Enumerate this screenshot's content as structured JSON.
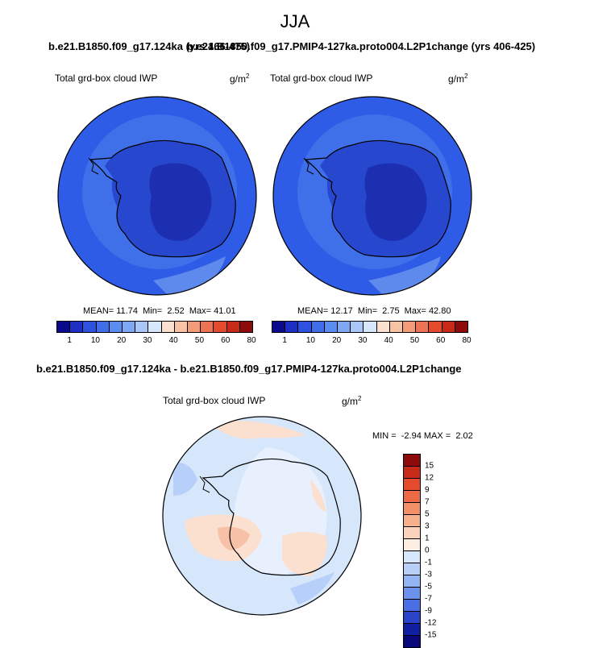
{
  "title": "JJA",
  "top_title_left": "b.e21.B1850.f09_g17.124ka (yrs 466-475)",
  "top_title_right": "b.e21.B1850.f09_g17.PMIP4-127ka.proto004.L2P1change (yrs 406-425)",
  "panel1": {
    "label": "Total grd-box cloud IWP",
    "units": "g/m",
    "units_exp": "2",
    "stats": "MEAN= 11.74  Min=  2.52  Max= 41.01"
  },
  "panel2": {
    "label": "Total grd-box cloud IWP",
    "units": "g/m",
    "units_exp": "2",
    "stats": "MEAN= 12.17  Min=  2.75  Max= 42.80"
  },
  "diff_title": "b.e21.B1850.f09_g17.124ka - b.e21.B1850.f09_g17.PMIP4-127ka.proto004.L2P1change",
  "diff_panel": {
    "label": "Total grd-box cloud IWP",
    "units": "g/m",
    "units_exp": "2",
    "stats": "MIN =  -2.94 MAX =  2.02"
  },
  "colorbar_labels": [
    "1",
    "10",
    "20",
    "30",
    "40",
    "50",
    "60",
    "80"
  ],
  "colorbar_colors": [
    "#0a0a8c",
    "#1d2fc4",
    "#2e52e0",
    "#3f6ee8",
    "#5b8cf0",
    "#7fa8f4",
    "#a9c6f8",
    "#d6e6fb",
    "#fbe0cf",
    "#f8c2a4",
    "#f29c7a",
    "#ec7454",
    "#e44a2c",
    "#c72a16",
    "#8e0b0b"
  ],
  "diff_colorbar_labels": [
    "15",
    "12",
    "9",
    "7",
    "5",
    "3",
    "1",
    "0",
    "-1",
    "-3",
    "-5",
    "-7",
    "-9",
    "-12",
    "-15"
  ],
  "diff_colorbar_colors": [
    "#8e0b0b",
    "#c72a16",
    "#e44a2c",
    "#ec6a44",
    "#f28f66",
    "#f6b08c",
    "#fbd3bd",
    "#fdeee4",
    "#d6e6fb",
    "#b8d0f8",
    "#94b4f4",
    "#6d92ee",
    "#4a6fe4",
    "#2a44c8",
    "#0f1fa0",
    "#08087a"
  ],
  "map_colors": {
    "ocean_outer": "#2f5ce6",
    "ocean_mid": "#3f6fe9",
    "continent": "#2847cf",
    "interior": "#1c2fb0",
    "highlight": "#7fa6f2",
    "diff_base": "#d6e6fb",
    "diff_light": "#e8f0fd",
    "diff_warm": "#fbe0cf",
    "diff_warm2": "#f6c1a6",
    "diff_cool": "#a9c6f8"
  }
}
